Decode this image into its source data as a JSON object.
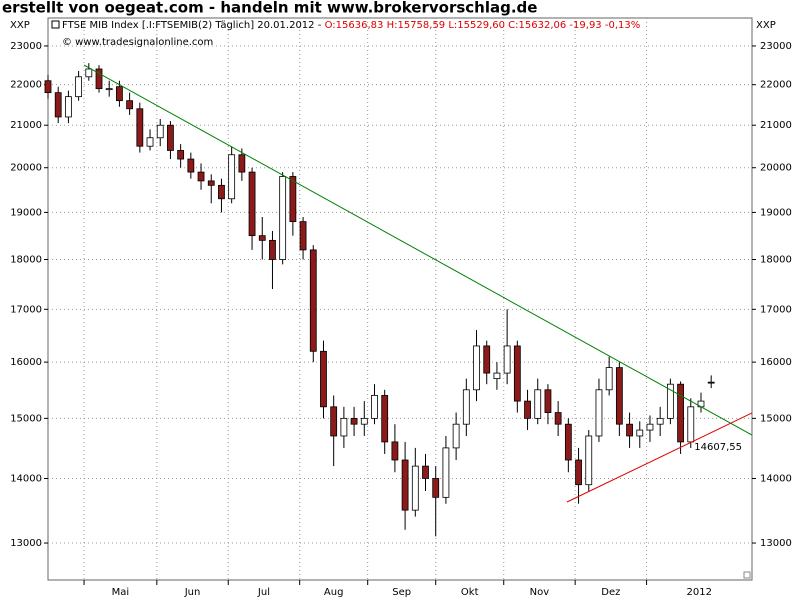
{
  "banner": "erstellt von oegeat.com - handeln mit www.brokervorschlag.de",
  "chart_data": {
    "type": "candlestick",
    "title": "FTSE MIB Index [.I:FTSEMIB(2)  Täglich] 20.01.2012 -",
    "ohlc_label": "O:15636,83 H:15758,59 L:15529,60 C:15632,06 -19,93 -0,13%",
    "copyright": "© www.tradesignalonline.com",
    "y_axis_label": "XXP",
    "log_scale": true,
    "grid": true,
    "up_color": "#ffffff",
    "down_color": "#8b1a1a",
    "xlim": [
      0,
      207
    ],
    "ylim": [
      12460,
      23750
    ],
    "yticks": [
      13000,
      14000,
      15000,
      16000,
      17000,
      18000,
      19000,
      20000,
      21000,
      22000,
      23000
    ],
    "xticks": [
      {
        "value": 10.6,
        "label": "Mai"
      },
      {
        "value": 32,
        "label": "Jun"
      },
      {
        "value": 53,
        "label": "Jul"
      },
      {
        "value": 74,
        "label": "Aug"
      },
      {
        "value": 94,
        "label": "Sep"
      },
      {
        "value": 114,
        "label": "Okt"
      },
      {
        "value": 134,
        "label": "Nov"
      },
      {
        "value": 155,
        "label": "Dez"
      },
      {
        "value": 176,
        "label": "2012"
      }
    ],
    "x": [
      0,
      3,
      6,
      9,
      12,
      15,
      18,
      21,
      24,
      27,
      30,
      33,
      36,
      39,
      42,
      45,
      48,
      51,
      54,
      57,
      60,
      63,
      66,
      69,
      72,
      75,
      78,
      81,
      84,
      87,
      90,
      93,
      96,
      99,
      102,
      105,
      108,
      111,
      114,
      117,
      120,
      123,
      126,
      129,
      132,
      135,
      138,
      141,
      144,
      147,
      150,
      153,
      156,
      159,
      162,
      165,
      168,
      171,
      174,
      177,
      180,
      183,
      186,
      189,
      192,
      195
    ],
    "open": [
      22100,
      21800,
      21200,
      21700,
      22200,
      22400,
      21900,
      21950,
      21600,
      21400,
      20500,
      20700,
      21000,
      20400,
      20200,
      19900,
      19700,
      19600,
      19300,
      20300,
      19900,
      18500,
      18400,
      18000,
      19800,
      18800,
      18200,
      16200,
      15200,
      14700,
      15000,
      14900,
      15000,
      15400,
      14600,
      14300,
      13500,
      14200,
      14000,
      13700,
      14500,
      14900,
      15500,
      16300,
      15700,
      15800,
      16300,
      15300,
      15000,
      15500,
      15100,
      14900,
      14300,
      13900,
      14700,
      15500,
      15900,
      14900,
      14700,
      14800,
      14900,
      15000,
      15600,
      14600,
      15200,
      15636.83
    ],
    "high": [
      22250,
      21950,
      21850,
      22350,
      22550,
      22500,
      22100,
      22100,
      21800,
      21550,
      20900,
      21150,
      21100,
      20550,
      20350,
      20100,
      19850,
      19750,
      20500,
      20450,
      20000,
      18900,
      18600,
      19900,
      19900,
      18900,
      18300,
      16400,
      15400,
      15200,
      15200,
      15300,
      15600,
      15500,
      14900,
      14600,
      14500,
      14400,
      14200,
      14700,
      15100,
      15700,
      16600,
      16400,
      16000,
      17000,
      16400,
      15500,
      15700,
      15600,
      15300,
      15000,
      14500,
      14800,
      15700,
      16100,
      16000,
      15100,
      14950,
      15050,
      15200,
      15700,
      15650,
      15350,
      15450,
      15758.59
    ],
    "low": [
      21650,
      21050,
      21050,
      21600,
      22100,
      21800,
      21700,
      21450,
      21250,
      20350,
      20400,
      20500,
      20200,
      20000,
      19750,
      19500,
      19200,
      19000,
      19200,
      19700,
      18200,
      18000,
      17400,
      17900,
      18500,
      18000,
      16000,
      15000,
      14200,
      14500,
      14700,
      14700,
      14900,
      14400,
      14100,
      13200,
      13400,
      13800,
      13100,
      13600,
      14300,
      14700,
      15300,
      15600,
      15500,
      15600,
      15100,
      14800,
      14900,
      14900,
      14700,
      14100,
      13600,
      13800,
      14600,
      15400,
      14700,
      14500,
      14500,
      14600,
      14700,
      14900,
      14400,
      14500,
      15100,
      15529.6
    ],
    "close": [
      21800,
      21200,
      21700,
      22200,
      22400,
      21900,
      21900,
      21600,
      21400,
      20500,
      20700,
      21000,
      20400,
      20200,
      19900,
      19700,
      19600,
      19300,
      20300,
      19900,
      18500,
      18400,
      18000,
      19800,
      18800,
      18200,
      16200,
      15200,
      14700,
      15000,
      14900,
      15000,
      15400,
      14600,
      14300,
      13500,
      14200,
      14000,
      13700,
      14500,
      14900,
      15500,
      16300,
      15800,
      15800,
      16300,
      15300,
      15000,
      15500,
      15100,
      14900,
      14300,
      13900,
      14700,
      15500,
      15900,
      14900,
      14700,
      14800,
      14900,
      15000,
      15600,
      14600,
      15200,
      15300,
      15632.06
    ],
    "trend_lines": [
      {
        "color": "#008000",
        "x": [
          10.6,
          207
        ],
        "y": [
          22500,
          14716
        ]
      },
      {
        "color": "#e00000",
        "x": [
          152.6,
          207
        ],
        "y": [
          13627,
          15093
        ],
        "label": "14607,55"
      }
    ]
  }
}
